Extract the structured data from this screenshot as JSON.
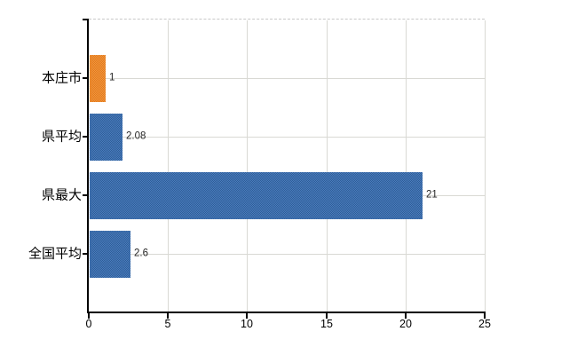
{
  "chart_data": {
    "type": "bar",
    "orientation": "horizontal",
    "title": "",
    "categories": [
      "本庄市",
      "県平均",
      "県最大",
      "全国平均"
    ],
    "values": [
      1,
      2.08,
      21,
      2.6
    ],
    "value_labels": [
      "1",
      "2.08",
      "21",
      "2.6"
    ],
    "bar_color_keys": [
      "orange",
      "blue",
      "blue",
      "blue"
    ],
    "x_ticks": [
      0,
      5,
      10,
      15,
      20,
      25
    ],
    "xlim": [
      0,
      25
    ],
    "grid": true,
    "legend": false
  },
  "palette": {
    "orange": {
      "base": "#e9882d",
      "light": "#f09a3c",
      "dark": "#e3761f"
    },
    "blue": {
      "base": "#3d6ea9",
      "light": "#4a7cc0",
      "dark": "#2f5e95"
    },
    "gridline": "#d9d9d4",
    "plot_top_border": "#c8c8c8",
    "axis": "#000000",
    "value_label": "#262626",
    "category_label": "#000000",
    "tick_label": "#000000",
    "background": "#ffffff"
  }
}
